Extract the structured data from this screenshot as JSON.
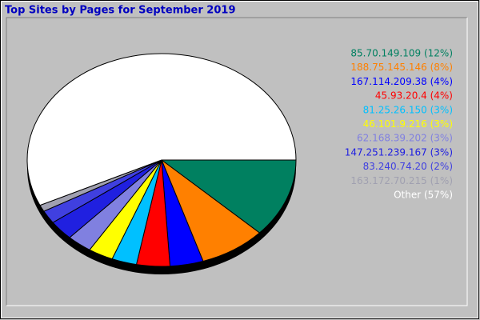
{
  "chart_data": {
    "type": "pie",
    "title": "Top Sites by Pages for September 2019",
    "categories": [
      "85.70.149.109 (12%)",
      "188.75.145.146 (8%)",
      "167.114.209.38 (4%)",
      "45.93.20.4 (4%)",
      "81.25.26.150 (3%)",
      "46.101.9.216 (3%)",
      "62.168.39.202 (3%)",
      "147.251.239.167 (3%)",
      "83.240.74.20 (2%)",
      "163.172.70.215 (1%)",
      "Other (57%)"
    ],
    "values": [
      12,
      8,
      4,
      4,
      3,
      3,
      3,
      3,
      2,
      1,
      57
    ],
    "colors": [
      "#008060",
      "#ff8000",
      "#0000ff",
      "#ff0000",
      "#00c0ff",
      "#ffff00",
      "#8080e0",
      "#2020e0",
      "#4040e0",
      "#a0a0b0",
      "#ffffff"
    ]
  }
}
